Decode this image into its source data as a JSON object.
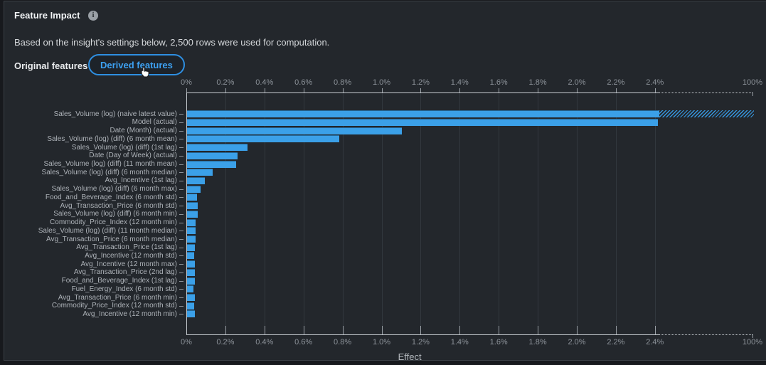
{
  "header": {
    "title": "Feature Impact",
    "info_icon": "i",
    "subtitle": "Based on the insight's settings below, 2,500 rows were used for computation.",
    "tabs": [
      {
        "label": "Original features",
        "active": false
      },
      {
        "label": "Derived features",
        "active": true
      }
    ]
  },
  "colors": {
    "panel_bg": "#23272c",
    "page_bg": "#17191d",
    "bar": "#3BA0E8",
    "active_tab_border": "#2e8fe2",
    "active_tab_text": "#3da1f2"
  },
  "chart_data": {
    "type": "bar",
    "orientation": "horizontal",
    "xlabel": "Effect",
    "x_axis": {
      "tick_labels": [
        "0%",
        "0.2%",
        "0.4%",
        "0.6%",
        "0.8%",
        "1.0%",
        "1.2%",
        "1.4%",
        "1.6%",
        "1.8%",
        "2.0%",
        "2.2%",
        "2.4%"
      ],
      "tick_values": [
        0,
        0.2,
        0.4,
        0.6,
        0.8,
        1.0,
        1.2,
        1.4,
        1.6,
        1.8,
        2.0,
        2.2,
        2.4
      ],
      "axis_break_after_pct": 2.42,
      "break_label": "100%",
      "mirrored_top_and_bottom": true,
      "grid": true
    },
    "categories": [
      "Sales_Volume (log) (naive latest value)",
      "Model (actual)",
      "Date (Month) (actual)",
      "Sales_Volume (log) (diff) (6 month mean)",
      "Sales_Volume (log) (diff) (1st lag)",
      "Date (Day of Week) (actual)",
      "Sales_Volume (log) (diff) (11 month mean)",
      "Sales_Volume (log) (diff) (6 month median)",
      "Avg_Incentive (1st lag)",
      "Sales_Volume (log) (diff) (6 month max)",
      "Food_and_Beverage_Index (6 month std)",
      "Avg_Transaction_Price (6 month std)",
      "Sales_Volume (log) (diff) (6 month min)",
      "Commodity_Price_Index (12 month min)",
      "Sales_Volume (log) (diff) (11 month median)",
      "Avg_Transaction_Price (6 month median)",
      "Avg_Transaction_Price (1st lag)",
      "Avg_Incentive (12 month std)",
      "Avg_Incentive (12 month max)",
      "Avg_Transaction_Price (2nd lag)",
      "Food_and_Beverage_Index (1st lag)",
      "Fuel_Energy_Index (6 month std)",
      "Avg_Transaction_Price (6 month min)",
      "Commodity_Price_Index (12 month std)",
      "Avg_Incentive (12 month min)"
    ],
    "values": [
      100,
      2.41,
      1.1,
      0.78,
      0.31,
      0.26,
      0.25,
      0.13,
      0.09,
      0.07,
      0.051,
      0.054,
      0.054,
      0.045,
      0.045,
      0.044,
      0.041,
      0.035,
      0.039,
      0.041,
      0.039,
      0.033,
      0.039,
      0.036,
      0.039
    ],
    "hatched_overflow_bars": [
      0
    ]
  }
}
